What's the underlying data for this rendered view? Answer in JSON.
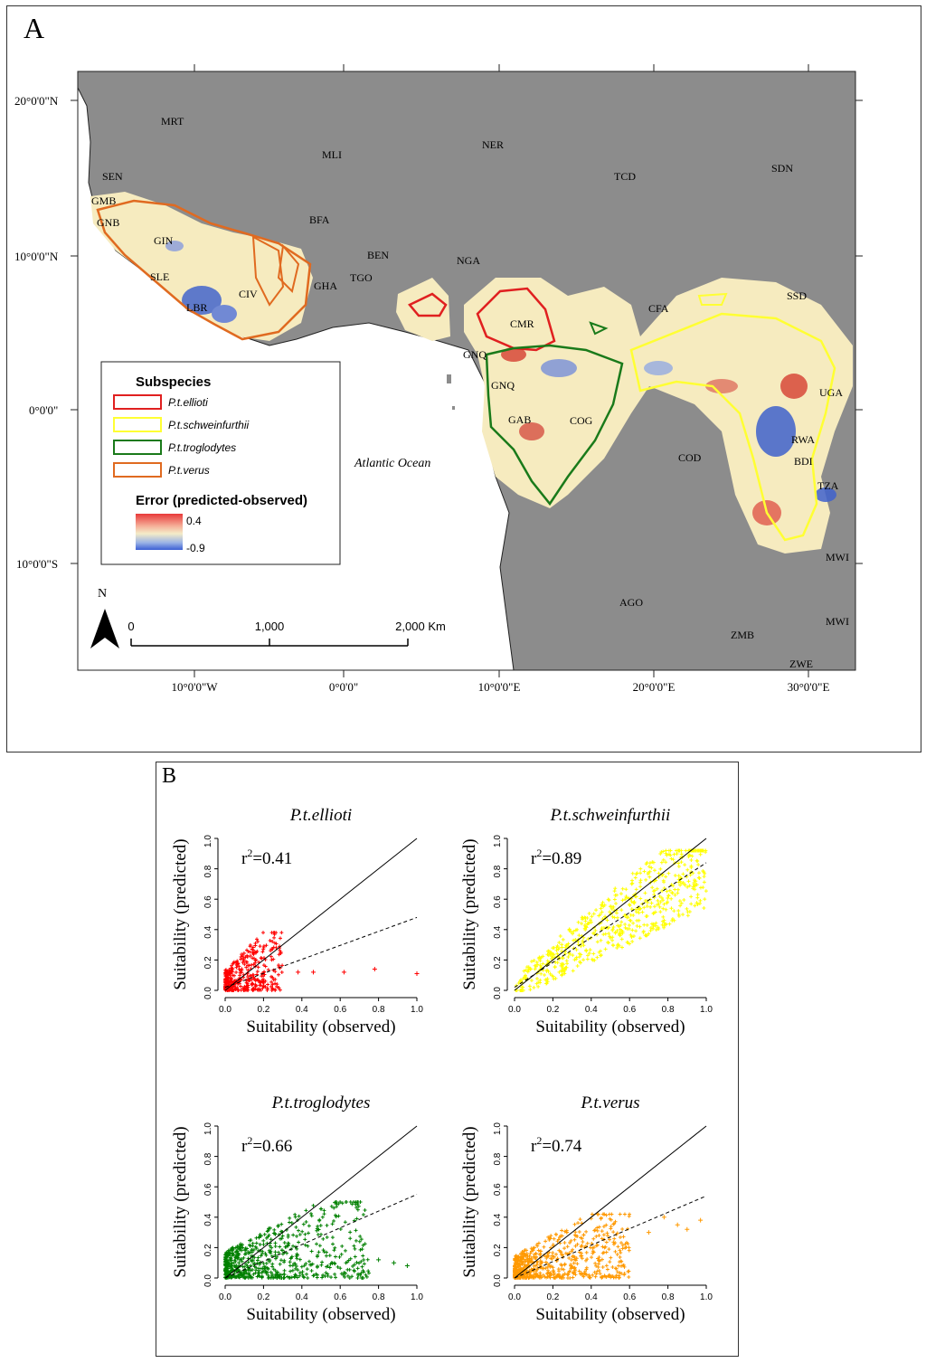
{
  "panel_a": {
    "letter": "A",
    "lat_labels": [
      "20°0'0\"N",
      "10°0'0\"N",
      "0°0'0\"",
      "10°0'0\"S"
    ],
    "lon_labels": [
      "10°0'0\"W",
      "0°0'0\"",
      "10°0'0\"E",
      "20°0'0\"E",
      "30°0'0\"E"
    ],
    "countries": [
      "MRT",
      "MLI",
      "NER",
      "TCD",
      "SDN",
      "SEN",
      "GMB",
      "GNB",
      "GIN",
      "BFA",
      "BEN",
      "NGA",
      "TGO",
      "GHA",
      "SLE",
      "CIV",
      "LBR",
      "CMR",
      "CFA",
      "SSD",
      "GNQ",
      "GNQ",
      "GAB",
      "COG",
      "UGA",
      "RWA",
      "BDI",
      "TZA",
      "COD",
      "AGO",
      "ZMB",
      "ZWE",
      "MWI",
      "MWI"
    ],
    "ocean_label": "Atlantic Ocean",
    "legend": {
      "title": "Subspecies",
      "items": [
        {
          "label": "P.t.ellioti",
          "color": "#e02020"
        },
        {
          "label": "P.t.schweinfurthii",
          "color": "#ffff33"
        },
        {
          "label": "P.t.troglodytes",
          "color": "#1a7a1a"
        },
        {
          "label": "P.t.verus",
          "color": "#e06a20"
        }
      ],
      "error_title": "Error (predicted-observed)",
      "error_max": "0.4",
      "error_min": "-0.9"
    },
    "north_label": "N",
    "scale_labels": [
      "0",
      "1,000",
      "2,000 Km"
    ],
    "colors": {
      "land": "#8c8c8c",
      "ocean": "#ffffff",
      "range": "#f6ebbf"
    }
  },
  "panel_b": {
    "letter": "B",
    "chart_data": [
      {
        "type": "scatter",
        "title": "P.t.ellioti",
        "r2_base": "r",
        "r2_sup": "2",
        "r2_val": "=0.41",
        "xlabel": "Suitability (observed)",
        "ylabel": "Suitability (predicted)",
        "xlim": [
          0,
          1
        ],
        "ylim": [
          0,
          1
        ],
        "ticks": [
          "0.0",
          "0.2",
          "0.4",
          "0.6",
          "0.8",
          "1.0"
        ],
        "color": "#ff0000",
        "fit": {
          "intercept": 0.02,
          "slope": 0.46
        },
        "cloud": {
          "xmax": 0.3,
          "ymax": 0.38
        },
        "outliers": [
          [
            0.38,
            0.12
          ],
          [
            0.46,
            0.12
          ],
          [
            0.62,
            0.12
          ],
          [
            0.78,
            0.14
          ],
          [
            1.0,
            0.11
          ]
        ]
      },
      {
        "type": "scatter",
        "title": "P.t.schweinfurthii",
        "r2_base": "r",
        "r2_sup": "2",
        "r2_val": "=0.89",
        "xlabel": "Suitability (observed)",
        "ylabel": "Suitability (predicted)",
        "xlim": [
          0,
          1
        ],
        "ylim": [
          0,
          1
        ],
        "ticks": [
          "0.0",
          "0.2",
          "0.4",
          "0.6",
          "0.8",
          "1.0"
        ],
        "color": "#ffff00",
        "fit": {
          "intercept": 0.02,
          "slope": 0.82
        },
        "cloud": {
          "xmax": 1.0,
          "ymax": 0.92
        },
        "outliers": []
      },
      {
        "type": "scatter",
        "title": "P.t.troglodytes",
        "r2_base": "r",
        "r2_sup": "2",
        "r2_val": "=0.66",
        "xlabel": "Suitability (observed)",
        "ylabel": "Suitability (predicted)",
        "xlim": [
          0,
          1
        ],
        "ylim": [
          0,
          1
        ],
        "ticks": [
          "0.0",
          "0.2",
          "0.4",
          "0.6",
          "0.8",
          "1.0"
        ],
        "color": "#008000",
        "fit": {
          "intercept": 0.0,
          "slope": 0.55
        },
        "cloud": {
          "xmax": 0.75,
          "ymax": 0.5
        },
        "outliers": [
          [
            0.8,
            0.12
          ],
          [
            0.88,
            0.1
          ],
          [
            0.95,
            0.08
          ]
        ]
      },
      {
        "type": "scatter",
        "title": "P.t.verus",
        "r2_base": "r",
        "r2_sup": "2",
        "r2_val": "=0.74",
        "xlabel": "Suitability (observed)",
        "ylabel": "Suitability (predicted)",
        "xlim": [
          0,
          1
        ],
        "ylim": [
          0,
          1
        ],
        "ticks": [
          "0.0",
          "0.2",
          "0.4",
          "0.6",
          "0.8",
          "1.0"
        ],
        "color": "#ff9900",
        "fit": {
          "intercept": 0.0,
          "slope": 0.54
        },
        "cloud": {
          "xmax": 0.6,
          "ymax": 0.42
        },
        "outliers": [
          [
            0.7,
            0.3
          ],
          [
            0.78,
            0.4
          ],
          [
            0.85,
            0.35
          ],
          [
            0.9,
            0.32
          ],
          [
            0.97,
            0.38
          ]
        ]
      }
    ]
  }
}
